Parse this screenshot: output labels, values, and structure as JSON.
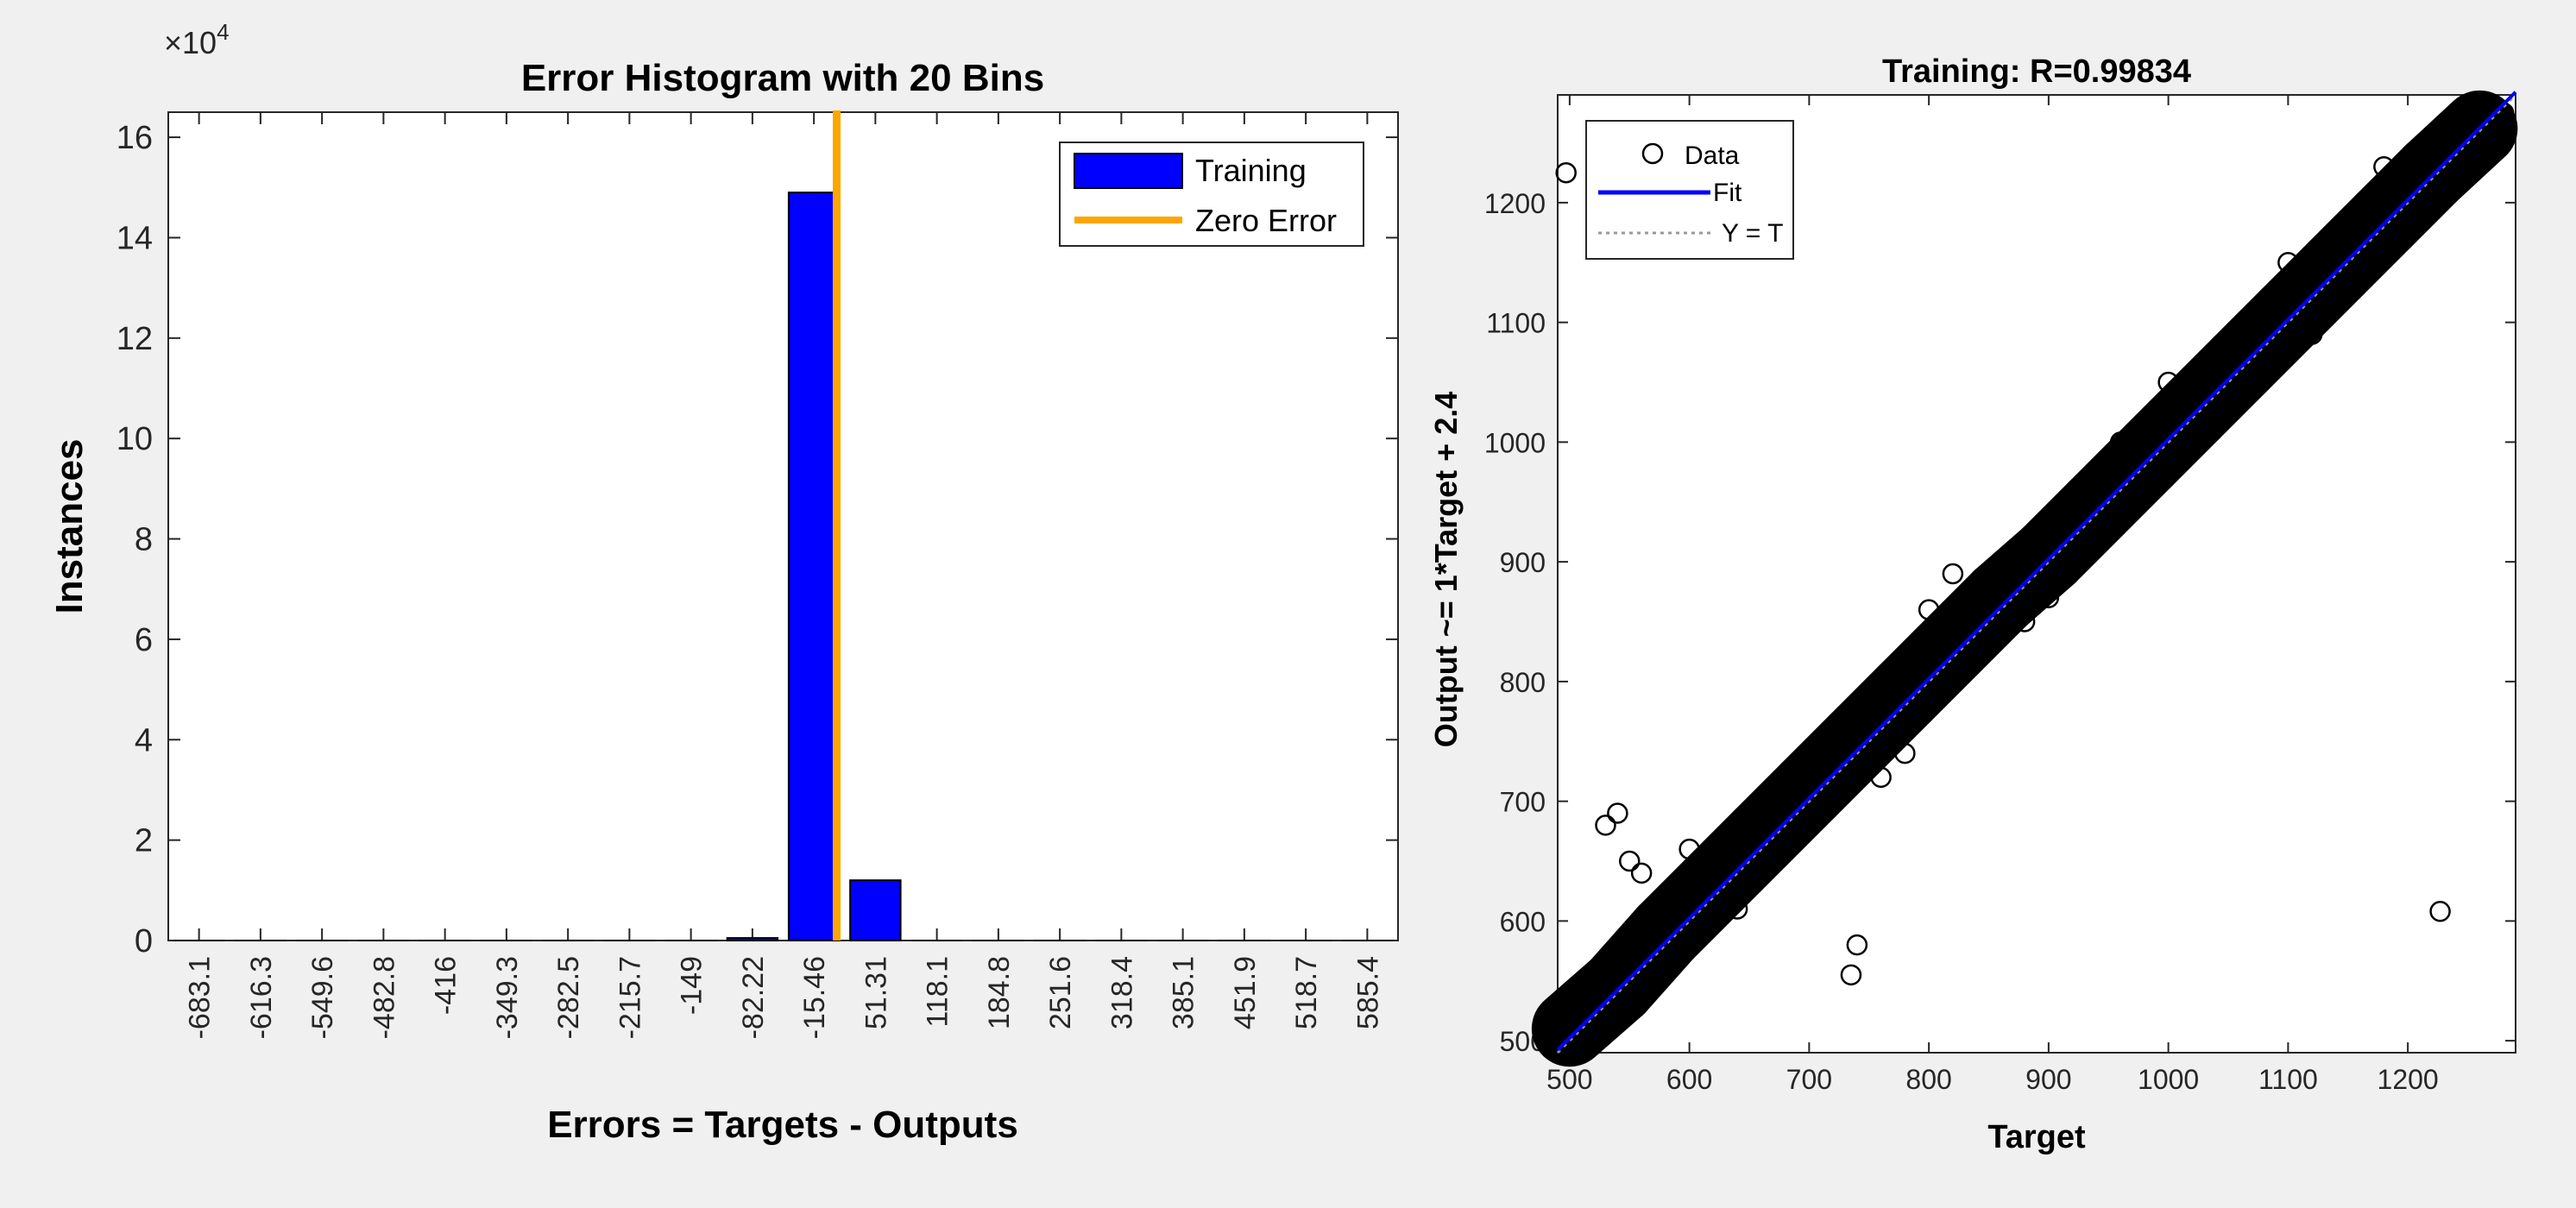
{
  "colors": {
    "panel_bg": "#f0f0f0",
    "bar_fill": "#0000ff",
    "zero_error": "#ffa500",
    "fit_line": "#0000ff",
    "ident_line": "#999999",
    "marker": "#000000"
  },
  "chart_data": [
    {
      "type": "bar",
      "title": "Error Histogram with 20 Bins",
      "xlabel": "Errors = Targets - Outputs",
      "ylabel": "Instances",
      "y_exponent_label": "×10",
      "y_exponent_sup": "4",
      "y_scale": 10000,
      "ylim": [
        0,
        165000
      ],
      "yticks": [
        0,
        2,
        4,
        6,
        8,
        10,
        12,
        14,
        16
      ],
      "categories": [
        "-683.1",
        "-616.3",
        "-549.6",
        "-482.8",
        "-416",
        "-349.3",
        "-282.5",
        "-215.7",
        "-149",
        "-82.22",
        "-15.46",
        "51.31",
        "118.1",
        "184.8",
        "251.6",
        "318.4",
        "385.1",
        "451.9",
        "518.7",
        "585.4"
      ],
      "series": [
        {
          "name": "Training",
          "values": [
            0,
            0,
            0,
            0,
            0,
            0,
            0,
            0,
            0,
            500,
            149000,
            12000,
            0,
            0,
            0,
            0,
            0,
            0,
            0,
            0
          ]
        }
      ],
      "zero_error": {
        "name": "Zero Error",
        "bin_fraction": 0.37
      },
      "legend": [
        {
          "label": "Training",
          "kind": "patch"
        },
        {
          "label": "Zero Error",
          "kind": "line"
        }
      ],
      "legend_position": "top-right",
      "grid": false
    },
    {
      "type": "scatter",
      "title": "Training: R=0.99834",
      "xlabel": "Target",
      "ylabel": "Output ~= 1*Target + 2.4",
      "xlim": [
        490,
        1290
      ],
      "ylim": [
        490,
        1290
      ],
      "xticks": [
        500,
        600,
        700,
        800,
        900,
        1000,
        1100,
        1200
      ],
      "yticks": [
        500,
        600,
        700,
        800,
        900,
        1000,
        1100,
        1200
      ],
      "fit": {
        "slope": 1,
        "intercept": 2.4
      },
      "points": [
        [
          500,
          498
        ],
        [
          505,
          510
        ],
        [
          512,
          505
        ],
        [
          520,
          530
        ],
        [
          515,
          540
        ],
        [
          530,
          525
        ],
        [
          545,
          560
        ],
        [
          560,
          550
        ],
        [
          575,
          590
        ],
        [
          590,
          570
        ],
        [
          600,
          615
        ],
        [
          610,
          595
        ],
        [
          625,
          640
        ],
        [
          640,
          620
        ],
        [
          655,
          670
        ],
        [
          670,
          650
        ],
        [
          690,
          705
        ],
        [
          710,
          690
        ],
        [
          730,
          745
        ],
        [
          750,
          735
        ],
        [
          770,
          785
        ],
        [
          790,
          770
        ],
        [
          810,
          830
        ],
        [
          830,
          810
        ],
        [
          850,
          865
        ],
        [
          870,
          855
        ],
        [
          890,
          905
        ],
        [
          910,
          895
        ],
        [
          930,
          945
        ],
        [
          950,
          940
        ],
        [
          970,
          985
        ],
        [
          990,
          980
        ],
        [
          1010,
          1020
        ],
        [
          1030,
          1025
        ],
        [
          1050,
          1060
        ],
        [
          1070,
          1065
        ],
        [
          1090,
          1100
        ],
        [
          1110,
          1105
        ],
        [
          1130,
          1140
        ],
        [
          1150,
          1148
        ],
        [
          1170,
          1180
        ],
        [
          1190,
          1185
        ],
        [
          1210,
          1215
        ],
        [
          1230,
          1232
        ],
        [
          1250,
          1255
        ],
        [
          1270,
          1268
        ],
        [
          1280,
          1275
        ],
        [
          1227,
          608
        ],
        [
          497,
          1225
        ],
        [
          735,
          555
        ],
        [
          740,
          580
        ],
        [
          540,
          690
        ],
        [
          530,
          680
        ],
        [
          550,
          650
        ],
        [
          560,
          640
        ],
        [
          600,
          660
        ],
        [
          620,
          650
        ],
        [
          680,
          720
        ],
        [
          800,
          860
        ],
        [
          820,
          890
        ],
        [
          760,
          720
        ],
        [
          780,
          740
        ],
        [
          880,
          850
        ],
        [
          900,
          870
        ],
        [
          960,
          1000
        ],
        [
          1000,
          1050
        ],
        [
          1100,
          1150
        ],
        [
          1120,
          1090
        ],
        [
          1180,
          1230
        ],
        [
          1200,
          1180
        ],
        [
          640,
          610
        ],
        [
          700,
          680
        ],
        [
          860,
          900
        ],
        [
          940,
          960
        ]
      ],
      "dense_band_centers": [
        [
          500,
          510
        ],
        [
          540,
          545
        ],
        [
          580,
          590
        ],
        [
          620,
          630
        ],
        [
          660,
          670
        ],
        [
          700,
          710
        ],
        [
          740,
          750
        ],
        [
          780,
          790
        ],
        [
          820,
          830
        ],
        [
          860,
          870
        ],
        [
          900,
          905
        ],
        [
          940,
          945
        ],
        [
          980,
          985
        ],
        [
          1020,
          1025
        ],
        [
          1060,
          1065
        ],
        [
          1100,
          1105
        ],
        [
          1140,
          1145
        ],
        [
          1180,
          1185
        ],
        [
          1220,
          1225
        ],
        [
          1260,
          1262
        ]
      ],
      "legend": [
        {
          "label": "Data",
          "kind": "marker"
        },
        {
          "label": "Fit",
          "kind": "line"
        },
        {
          "label": "Y = T",
          "kind": "dotted"
        }
      ],
      "legend_position": "top-left",
      "grid": false
    }
  ]
}
